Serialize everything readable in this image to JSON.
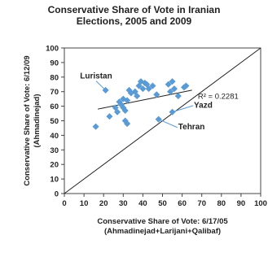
{
  "chart_data": {
    "type": "scatter",
    "title": [
      "Conservative Share of Vote in Iranian",
      "Elections, 2005 and 2009"
    ],
    "xlabel": [
      "Conservative Share of Vote: 6/17/05",
      "(Ahmadinejad+Larijani+Qalibaf)"
    ],
    "ylabel": [
      "Conservative Share of Vote: 6/12/09",
      "(Ahmadinejad)"
    ],
    "xlim": [
      0,
      100
    ],
    "ylim": [
      0,
      100
    ],
    "xticks": [
      0,
      10,
      20,
      30,
      40,
      50,
      60,
      70,
      80,
      90,
      100
    ],
    "yticks": [
      0,
      10,
      20,
      30,
      40,
      50,
      60,
      70,
      80,
      90,
      100
    ],
    "grid": false,
    "marker_color": "#5b9bd5",
    "line_color": "#222222",
    "points": [
      {
        "x": 16,
        "y": 46
      },
      {
        "x": 21,
        "y": 71
      },
      {
        "x": 23,
        "y": 53
      },
      {
        "x": 26,
        "y": 59
      },
      {
        "x": 27,
        "y": 56
      },
      {
        "x": 28,
        "y": 63
      },
      {
        "x": 29,
        "y": 61
      },
      {
        "x": 30,
        "y": 65
      },
      {
        "x": 30,
        "y": 59
      },
      {
        "x": 31,
        "y": 57
      },
      {
        "x": 31,
        "y": 50
      },
      {
        "x": 32,
        "y": 64
      },
      {
        "x": 32,
        "y": 48
      },
      {
        "x": 33,
        "y": 71
      },
      {
        "x": 34,
        "y": 69
      },
      {
        "x": 36,
        "y": 70
      },
      {
        "x": 37,
        "y": 67
      },
      {
        "x": 38,
        "y": 74
      },
      {
        "x": 39,
        "y": 77
      },
      {
        "x": 40,
        "y": 72
      },
      {
        "x": 41,
        "y": 76
      },
      {
        "x": 42,
        "y": 75
      },
      {
        "x": 43,
        "y": 72
      },
      {
        "x": 45,
        "y": 74
      },
      {
        "x": 47,
        "y": 68
      },
      {
        "x": 48,
        "y": 51
      },
      {
        "x": 53,
        "y": 75
      },
      {
        "x": 54,
        "y": 70
      },
      {
        "x": 55,
        "y": 77
      },
      {
        "x": 55,
        "y": 56
      },
      {
        "x": 56,
        "y": 72
      },
      {
        "x": 58,
        "y": 67
      },
      {
        "x": 61,
        "y": 73
      },
      {
        "x": 62,
        "y": 74
      }
    ],
    "trendline": {
      "x": [
        17,
        65
      ],
      "y": [
        58,
        71
      ]
    },
    "reference_line": {
      "x": [
        0,
        100
      ],
      "y": [
        0,
        100
      ]
    },
    "annotations": [
      {
        "text": "Luristan",
        "point_x": 21,
        "point_y": 71,
        "label_x": 8,
        "label_y": 79
      },
      {
        "text": "Yazd",
        "point_x": 55,
        "point_y": 56,
        "label_x": 66,
        "label_y": 59
      },
      {
        "text": "Tehran",
        "point_x": 48,
        "point_y": 51,
        "label_x": 58,
        "label_y": 44
      }
    ],
    "r_squared_label": "R² = 0.2281",
    "r_squared_pos": {
      "x": 68,
      "y": 65
    }
  }
}
